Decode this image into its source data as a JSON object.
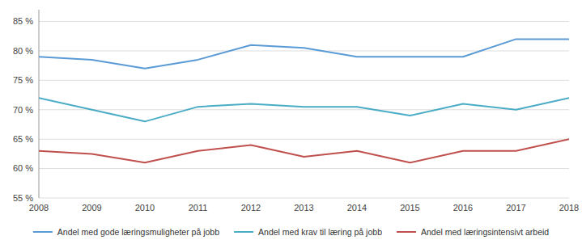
{
  "chart_data": {
    "type": "line",
    "x": [
      2008,
      2009,
      2010,
      2011,
      2012,
      2013,
      2014,
      2015,
      2016,
      2017,
      2018
    ],
    "series": [
      {
        "name": "Andel med gode læringsmuligheter på jobb",
        "color": "#5B9BD5",
        "values": [
          79,
          78.5,
          77,
          78.5,
          81,
          80.5,
          79,
          79,
          79,
          82,
          82
        ]
      },
      {
        "name": "Andel med krav til læring på jobb",
        "color": "#4BACC6",
        "values": [
          72,
          70,
          68,
          70.5,
          71,
          70.5,
          70.5,
          69,
          71,
          70,
          72
        ]
      },
      {
        "name": "Andel med læringsintensivt arbeid",
        "color": "#C0504D",
        "values": [
          63,
          62.5,
          61,
          63,
          64,
          62,
          63,
          61,
          63,
          63,
          65
        ]
      }
    ],
    "xlim": [
      2008,
      2018
    ],
    "xticks": [
      2008,
      2009,
      2010,
      2011,
      2012,
      2013,
      2014,
      2015,
      2016,
      2017,
      2018
    ],
    "ylim": [
      55,
      87
    ],
    "yticks": [
      {
        "value": 55,
        "label": "55 %"
      },
      {
        "value": 60,
        "label": "60 %"
      },
      {
        "value": 65,
        "label": "65 %"
      },
      {
        "value": 70,
        "label": "70 %"
      },
      {
        "value": 75,
        "label": "75 %"
      },
      {
        "value": 80,
        "label": "80 %"
      },
      {
        "value": 85,
        "label": "85 %"
      }
    ],
    "grid": true,
    "legend": "bottom"
  }
}
